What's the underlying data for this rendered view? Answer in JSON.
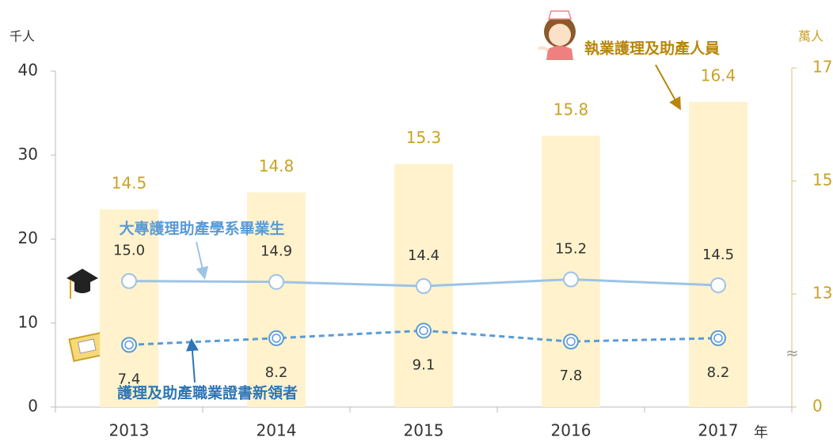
{
  "chart_data": {
    "type": "combo",
    "y_label": "千人",
    "y2_label": "萬人",
    "x_unit": "年",
    "categories": [
      "2013",
      "2014",
      "2015",
      "2016",
      "2017"
    ],
    "ylim": [
      0,
      40
    ],
    "yticks": [
      0,
      10,
      20,
      30,
      40
    ],
    "y2lim": [
      0,
      17
    ],
    "y2ticks": [
      0,
      13,
      15,
      17
    ],
    "y2_break": true,
    "series": [
      {
        "name": "執業護理及助產人員",
        "type": "bar",
        "axis": "y2",
        "color": "#fff2cc",
        "label_color": "#c9a227",
        "values": [
          14.5,
          14.8,
          15.3,
          15.8,
          16.4
        ]
      },
      {
        "name": "大專護理助產學系畢業生",
        "type": "line",
        "color": "#9dc3e6",
        "label_color": "#5b9bd5",
        "values": [
          15,
          14.9,
          14.4,
          15.2,
          14.5
        ],
        "value_labels": [
          "15.0",
          "14.9",
          "14.4",
          "15.2",
          "14.5"
        ]
      },
      {
        "name": "護理及助產職業證書新領者",
        "type": "line",
        "dashed": true,
        "color": "#5b9bd5",
        "label_color": "#2e75b6",
        "values": [
          7.4,
          8.2,
          9.1,
          7.8,
          8.2
        ]
      }
    ]
  }
}
